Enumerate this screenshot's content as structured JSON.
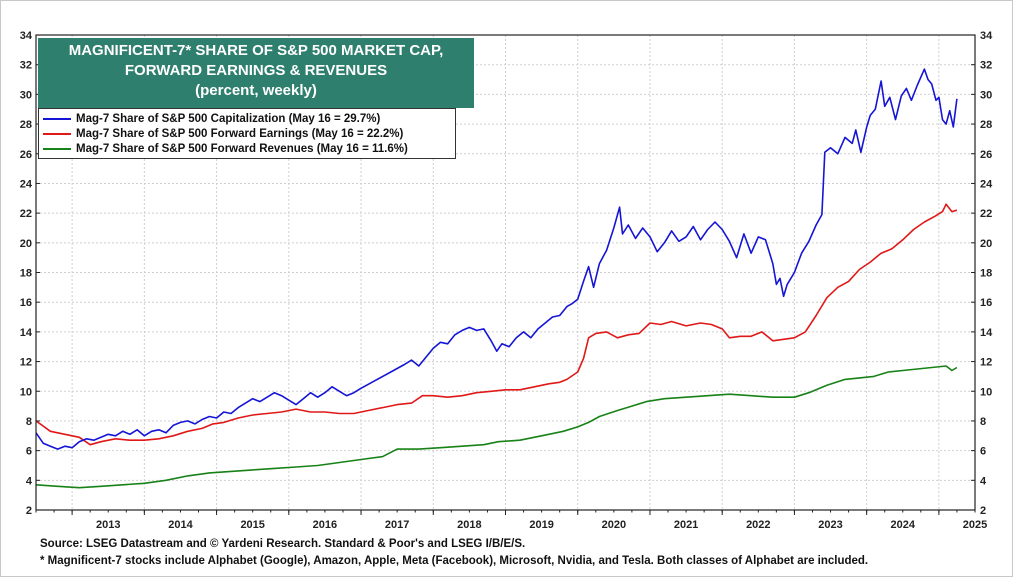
{
  "chart_data": {
    "type": "line",
    "title": "MAGNIFICENT-7* SHARE OF S&P 500 MARKET CAP, FORWARD EARNINGS & REVENUES",
    "title_lines": [
      "MAGNIFICENT-7* SHARE OF S&P 500 MARKET CAP,",
      "FORWARD EARNINGS & REVENUES",
      "(percent, weekly)"
    ],
    "subtitle": "(percent, weekly)",
    "xlim": [
      2012.5,
      2025.5
    ],
    "ylim": [
      2,
      34
    ],
    "x_ticks": [
      "2013",
      "2014",
      "2015",
      "2016",
      "2017",
      "2018",
      "2019",
      "2020",
      "2021",
      "2022",
      "2023",
      "2024",
      "2025"
    ],
    "y_ticks": [
      "2",
      "4",
      "6",
      "8",
      "10",
      "12",
      "14",
      "16",
      "18",
      "20",
      "22",
      "24",
      "26",
      "28",
      "30",
      "32",
      "34"
    ],
    "grid": true,
    "legend_position": "top-left",
    "series": [
      {
        "name": "Mag-7 Share of S&P 500 Capitalization (May 16 = 29.7%)",
        "color": "#1515d6",
        "points": [
          [
            2012.5,
            7.2
          ],
          [
            2012.6,
            6.5
          ],
          [
            2012.7,
            6.3
          ],
          [
            2012.8,
            6.1
          ],
          [
            2012.9,
            6.3
          ],
          [
            2013.0,
            6.2
          ],
          [
            2013.1,
            6.6
          ],
          [
            2013.2,
            6.8
          ],
          [
            2013.3,
            6.7
          ],
          [
            2013.4,
            6.9
          ],
          [
            2013.5,
            7.1
          ],
          [
            2013.6,
            7.0
          ],
          [
            2013.7,
            7.3
          ],
          [
            2013.8,
            7.1
          ],
          [
            2013.9,
            7.4
          ],
          [
            2014.0,
            7.0
          ],
          [
            2014.1,
            7.3
          ],
          [
            2014.2,
            7.4
          ],
          [
            2014.3,
            7.2
          ],
          [
            2014.4,
            7.7
          ],
          [
            2014.5,
            7.9
          ],
          [
            2014.6,
            8.0
          ],
          [
            2014.7,
            7.8
          ],
          [
            2014.8,
            8.1
          ],
          [
            2014.9,
            8.3
          ],
          [
            2015.0,
            8.2
          ],
          [
            2015.1,
            8.6
          ],
          [
            2015.2,
            8.5
          ],
          [
            2015.3,
            8.9
          ],
          [
            2015.4,
            9.2
          ],
          [
            2015.5,
            9.5
          ],
          [
            2015.6,
            9.3
          ],
          [
            2015.7,
            9.6
          ],
          [
            2015.8,
            9.9
          ],
          [
            2015.9,
            9.7
          ],
          [
            2016.0,
            9.4
          ],
          [
            2016.1,
            9.1
          ],
          [
            2016.2,
            9.5
          ],
          [
            2016.3,
            9.9
          ],
          [
            2016.4,
            9.6
          ],
          [
            2016.5,
            9.9
          ],
          [
            2016.6,
            10.3
          ],
          [
            2016.7,
            10.0
          ],
          [
            2016.8,
            9.7
          ],
          [
            2016.9,
            9.9
          ],
          [
            2017.0,
            10.2
          ],
          [
            2017.15,
            10.6
          ],
          [
            2017.3,
            11.0
          ],
          [
            2017.45,
            11.4
          ],
          [
            2017.6,
            11.8
          ],
          [
            2017.7,
            12.1
          ],
          [
            2017.8,
            11.7
          ],
          [
            2017.9,
            12.3
          ],
          [
            2018.0,
            12.9
          ],
          [
            2018.1,
            13.3
          ],
          [
            2018.2,
            13.2
          ],
          [
            2018.3,
            13.8
          ],
          [
            2018.4,
            14.1
          ],
          [
            2018.5,
            14.3
          ],
          [
            2018.6,
            14.1
          ],
          [
            2018.7,
            14.2
          ],
          [
            2018.8,
            13.4
          ],
          [
            2018.88,
            12.7
          ],
          [
            2018.95,
            13.2
          ],
          [
            2019.05,
            13.0
          ],
          [
            2019.15,
            13.6
          ],
          [
            2019.25,
            14.0
          ],
          [
            2019.35,
            13.6
          ],
          [
            2019.45,
            14.2
          ],
          [
            2019.55,
            14.6
          ],
          [
            2019.65,
            15.0
          ],
          [
            2019.75,
            15.1
          ],
          [
            2019.85,
            15.7
          ],
          [
            2019.92,
            15.9
          ],
          [
            2020.0,
            16.2
          ],
          [
            2020.08,
            17.4
          ],
          [
            2020.15,
            18.4
          ],
          [
            2020.22,
            17.0
          ],
          [
            2020.3,
            18.6
          ],
          [
            2020.4,
            19.5
          ],
          [
            2020.5,
            21.0
          ],
          [
            2020.58,
            22.4
          ],
          [
            2020.62,
            20.6
          ],
          [
            2020.7,
            21.2
          ],
          [
            2020.8,
            20.3
          ],
          [
            2020.9,
            21.0
          ],
          [
            2021.0,
            20.4
          ],
          [
            2021.1,
            19.4
          ],
          [
            2021.2,
            20.0
          ],
          [
            2021.3,
            20.8
          ],
          [
            2021.4,
            20.1
          ],
          [
            2021.5,
            20.4
          ],
          [
            2021.6,
            21.1
          ],
          [
            2021.7,
            20.2
          ],
          [
            2021.8,
            20.9
          ],
          [
            2021.9,
            21.4
          ],
          [
            2022.0,
            20.9
          ],
          [
            2022.1,
            20.1
          ],
          [
            2022.2,
            19.0
          ],
          [
            2022.3,
            20.6
          ],
          [
            2022.4,
            19.3
          ],
          [
            2022.5,
            20.4
          ],
          [
            2022.6,
            20.2
          ],
          [
            2022.7,
            18.6
          ],
          [
            2022.75,
            17.2
          ],
          [
            2022.8,
            17.6
          ],
          [
            2022.85,
            16.4
          ],
          [
            2022.9,
            17.2
          ],
          [
            2023.0,
            18.0
          ],
          [
            2023.1,
            19.3
          ],
          [
            2023.2,
            20.1
          ],
          [
            2023.3,
            21.2
          ],
          [
            2023.38,
            21.9
          ],
          [
            2023.42,
            26.1
          ],
          [
            2023.5,
            26.4
          ],
          [
            2023.6,
            26.0
          ],
          [
            2023.7,
            27.1
          ],
          [
            2023.8,
            26.7
          ],
          [
            2023.85,
            27.6
          ],
          [
            2023.92,
            26.1
          ],
          [
            2024.0,
            27.8
          ],
          [
            2024.05,
            28.6
          ],
          [
            2024.12,
            29.0
          ],
          [
            2024.2,
            30.9
          ],
          [
            2024.25,
            29.2
          ],
          [
            2024.32,
            29.8
          ],
          [
            2024.4,
            28.3
          ],
          [
            2024.48,
            29.9
          ],
          [
            2024.55,
            30.4
          ],
          [
            2024.62,
            29.6
          ],
          [
            2024.7,
            30.6
          ],
          [
            2024.8,
            31.7
          ],
          [
            2024.85,
            31.0
          ],
          [
            2024.9,
            30.7
          ],
          [
            2024.96,
            29.6
          ],
          [
            2025.0,
            29.8
          ],
          [
            2025.05,
            28.3
          ],
          [
            2025.1,
            28.0
          ],
          [
            2025.15,
            28.9
          ],
          [
            2025.2,
            27.8
          ],
          [
            2025.25,
            29.7
          ]
        ]
      },
      {
        "name": "Mag-7 Share of S&P 500 Forward Earnings (May 16 = 22.2%)",
        "color": "#e01818",
        "points": [
          [
            2012.5,
            8.0
          ],
          [
            2012.7,
            7.3
          ],
          [
            2012.9,
            7.1
          ],
          [
            2013.1,
            6.9
          ],
          [
            2013.25,
            6.4
          ],
          [
            2013.4,
            6.6
          ],
          [
            2013.6,
            6.8
          ],
          [
            2013.8,
            6.7
          ],
          [
            2014.0,
            6.7
          ],
          [
            2014.2,
            6.8
          ],
          [
            2014.4,
            7.0
          ],
          [
            2014.6,
            7.3
          ],
          [
            2014.8,
            7.5
          ],
          [
            2014.95,
            7.8
          ],
          [
            2015.1,
            7.9
          ],
          [
            2015.3,
            8.2
          ],
          [
            2015.5,
            8.4
          ],
          [
            2015.7,
            8.5
          ],
          [
            2015.9,
            8.6
          ],
          [
            2016.1,
            8.8
          ],
          [
            2016.3,
            8.6
          ],
          [
            2016.5,
            8.6
          ],
          [
            2016.7,
            8.5
          ],
          [
            2016.9,
            8.5
          ],
          [
            2017.1,
            8.7
          ],
          [
            2017.3,
            8.9
          ],
          [
            2017.5,
            9.1
          ],
          [
            2017.7,
            9.2
          ],
          [
            2017.85,
            9.7
          ],
          [
            2018.0,
            9.7
          ],
          [
            2018.2,
            9.6
          ],
          [
            2018.4,
            9.7
          ],
          [
            2018.6,
            9.9
          ],
          [
            2018.8,
            10.0
          ],
          [
            2019.0,
            10.1
          ],
          [
            2019.2,
            10.1
          ],
          [
            2019.4,
            10.3
          ],
          [
            2019.6,
            10.5
          ],
          [
            2019.75,
            10.6
          ],
          [
            2019.85,
            10.8
          ],
          [
            2020.0,
            11.3
          ],
          [
            2020.08,
            12.2
          ],
          [
            2020.15,
            13.6
          ],
          [
            2020.25,
            13.9
          ],
          [
            2020.4,
            14.0
          ],
          [
            2020.55,
            13.6
          ],
          [
            2020.7,
            13.8
          ],
          [
            2020.85,
            13.9
          ],
          [
            2021.0,
            14.6
          ],
          [
            2021.15,
            14.5
          ],
          [
            2021.3,
            14.7
          ],
          [
            2021.5,
            14.4
          ],
          [
            2021.7,
            14.6
          ],
          [
            2021.85,
            14.5
          ],
          [
            2022.0,
            14.2
          ],
          [
            2022.1,
            13.6
          ],
          [
            2022.25,
            13.7
          ],
          [
            2022.4,
            13.7
          ],
          [
            2022.55,
            14.0
          ],
          [
            2022.7,
            13.4
          ],
          [
            2022.85,
            13.5
          ],
          [
            2023.0,
            13.6
          ],
          [
            2023.15,
            14.0
          ],
          [
            2023.3,
            15.1
          ],
          [
            2023.45,
            16.3
          ],
          [
            2023.6,
            17.0
          ],
          [
            2023.75,
            17.4
          ],
          [
            2023.9,
            18.2
          ],
          [
            2024.05,
            18.7
          ],
          [
            2024.2,
            19.3
          ],
          [
            2024.35,
            19.6
          ],
          [
            2024.5,
            20.2
          ],
          [
            2024.65,
            20.9
          ],
          [
            2024.8,
            21.4
          ],
          [
            2024.95,
            21.8
          ],
          [
            2025.05,
            22.1
          ],
          [
            2025.1,
            22.6
          ],
          [
            2025.18,
            22.1
          ],
          [
            2025.25,
            22.2
          ]
        ]
      },
      {
        "name": "Mag-7 Share of S&P 500 Forward Revenues (May 16 = 11.6%)",
        "color": "#178217",
        "points": [
          [
            2012.5,
            3.7
          ],
          [
            2012.8,
            3.6
          ],
          [
            2013.1,
            3.5
          ],
          [
            2013.4,
            3.6
          ],
          [
            2013.7,
            3.7
          ],
          [
            2014.0,
            3.8
          ],
          [
            2014.3,
            4.0
          ],
          [
            2014.6,
            4.3
          ],
          [
            2014.9,
            4.5
          ],
          [
            2015.2,
            4.6
          ],
          [
            2015.5,
            4.7
          ],
          [
            2015.8,
            4.8
          ],
          [
            2016.1,
            4.9
          ],
          [
            2016.4,
            5.0
          ],
          [
            2016.7,
            5.2
          ],
          [
            2017.0,
            5.4
          ],
          [
            2017.3,
            5.6
          ],
          [
            2017.5,
            6.1
          ],
          [
            2017.8,
            6.1
          ],
          [
            2018.1,
            6.2
          ],
          [
            2018.4,
            6.3
          ],
          [
            2018.7,
            6.4
          ],
          [
            2018.9,
            6.6
          ],
          [
            2019.2,
            6.7
          ],
          [
            2019.5,
            7.0
          ],
          [
            2019.8,
            7.3
          ],
          [
            2020.0,
            7.6
          ],
          [
            2020.15,
            7.9
          ],
          [
            2020.3,
            8.3
          ],
          [
            2020.55,
            8.7
          ],
          [
            2020.75,
            9.0
          ],
          [
            2020.95,
            9.3
          ],
          [
            2021.2,
            9.5
          ],
          [
            2021.5,
            9.6
          ],
          [
            2021.8,
            9.7
          ],
          [
            2022.1,
            9.8
          ],
          [
            2022.4,
            9.7
          ],
          [
            2022.7,
            9.6
          ],
          [
            2023.0,
            9.6
          ],
          [
            2023.2,
            9.9
          ],
          [
            2023.45,
            10.4
          ],
          [
            2023.7,
            10.8
          ],
          [
            2023.9,
            10.9
          ],
          [
            2024.1,
            11.0
          ],
          [
            2024.3,
            11.3
          ],
          [
            2024.5,
            11.4
          ],
          [
            2024.7,
            11.5
          ],
          [
            2024.9,
            11.6
          ],
          [
            2025.1,
            11.7
          ],
          [
            2025.18,
            11.4
          ],
          [
            2025.25,
            11.6
          ]
        ]
      }
    ],
    "source": "Source: LSEG Datastream and © Yardeni Research. Standard & Poor's and LSEG I/B/E/S.",
    "footnote": "* Magnificent-7 stocks include Alphabet (Google), Amazon, Apple, Meta (Facebook), Microsoft, Nvidia, and Tesla. Both classes of Alphabet are included."
  }
}
